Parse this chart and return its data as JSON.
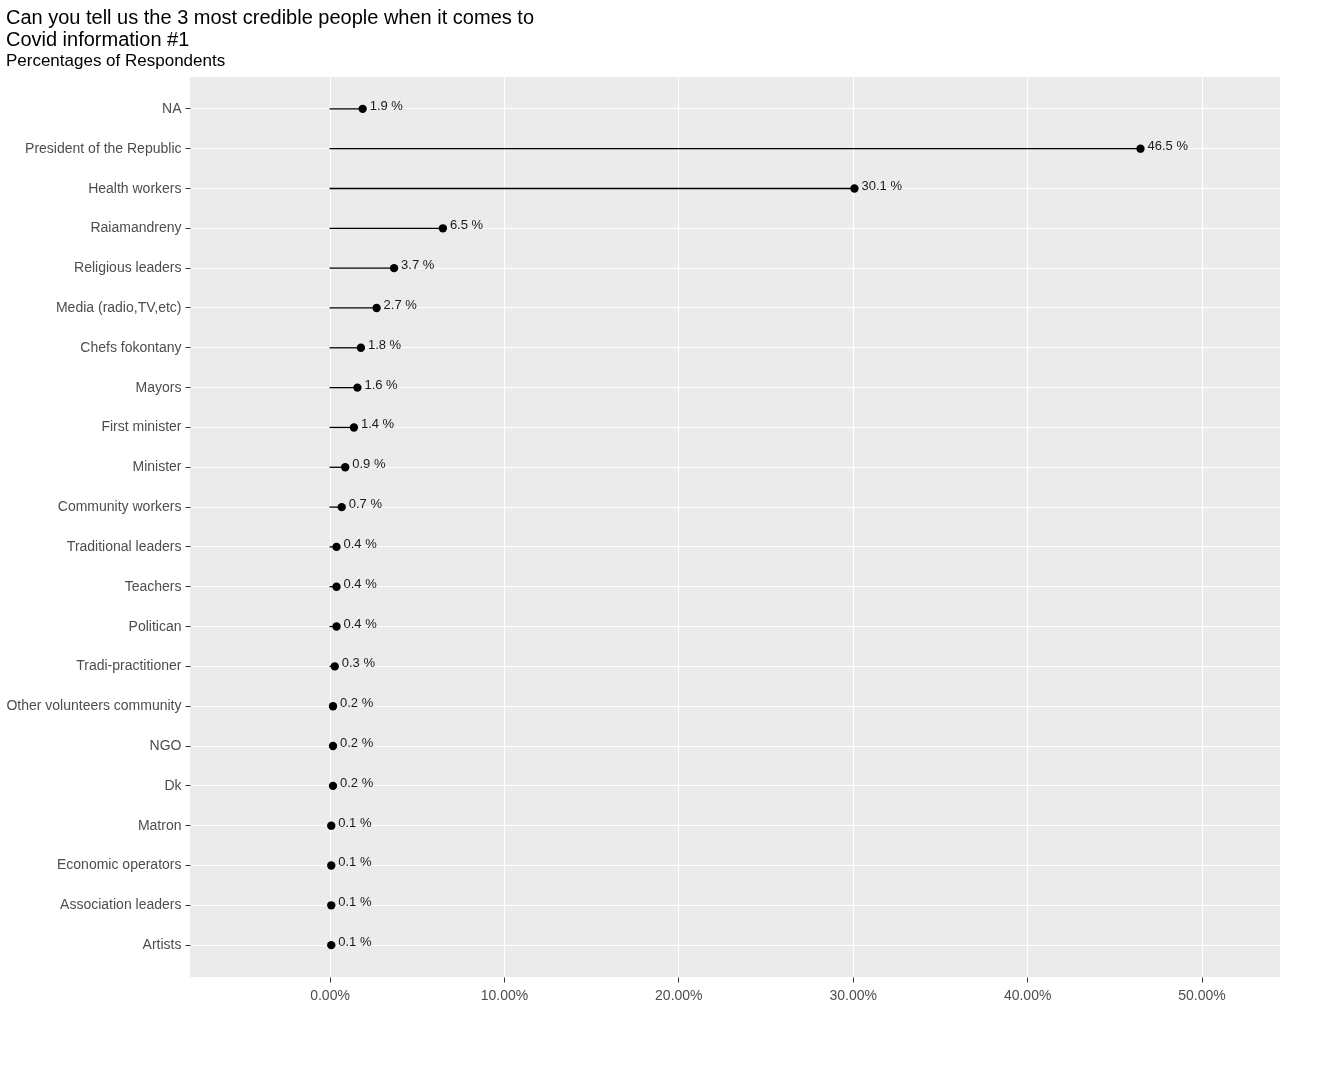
{
  "chart_data": {
    "type": "lollipop",
    "orientation": "horizontal",
    "title": "Can you tell us the 3 most credible people when it comes to\n Covid information #1",
    "subtitle": "Percentages of Respondents",
    "categories": [
      "NA",
      "President of the Republic",
      "Health workers",
      "Raiamandreny",
      "Religious leaders",
      "Media (radio,TV,etc)",
      "Chefs fokontany",
      "Mayors",
      "First minister",
      "Minister",
      "Community workers",
      "Traditional leaders",
      "Teachers",
      "Politican",
      "Tradi-practitioner",
      "Other volunteers community",
      "NGO",
      "Dk",
      "Matron",
      "Economic operators",
      "Association leaders",
      "Artists"
    ],
    "values": [
      1.9,
      46.5,
      30.1,
      6.5,
      3.7,
      2.7,
      1.8,
      1.6,
      1.4,
      0.9,
      0.7,
      0.4,
      0.4,
      0.4,
      0.3,
      0.2,
      0.2,
      0.2,
      0.1,
      0.1,
      0.1,
      0.1
    ],
    "value_labels": [
      "1.9 %",
      "46.5 %",
      "30.1 %",
      "6.5 %",
      "3.7 %",
      "2.7 %",
      "1.8 %",
      "1.6 %",
      "1.4 %",
      "0.9 %",
      "0.7 %",
      "0.4 %",
      "0.4 %",
      "0.4 %",
      "0.3 %",
      "0.2 %",
      "0.2 %",
      "0.2 %",
      "0.1 %",
      "0.1 %",
      "0.1 %",
      "0.1 %"
    ],
    "color": "#000000",
    "xlim": [
      -8,
      54.5
    ],
    "xticks": [
      {
        "value": 0,
        "label": "0.00%"
      },
      {
        "value": 10,
        "label": "10.00%"
      },
      {
        "value": 20,
        "label": "20.00%"
      },
      {
        "value": 30,
        "label": "30.00%"
      },
      {
        "value": 40,
        "label": "40.00%"
      },
      {
        "value": 50,
        "label": "50.00%"
      }
    ],
    "grid": true,
    "marker": "circle"
  }
}
